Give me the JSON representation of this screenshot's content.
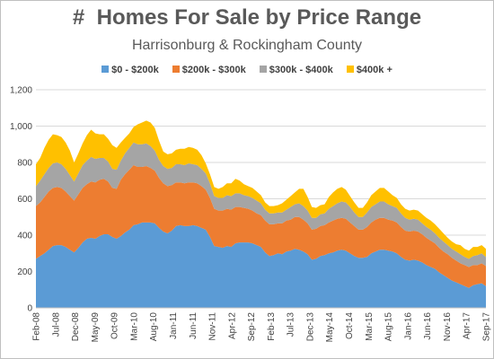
{
  "chart_data": {
    "type": "area",
    "stacked": true,
    "title": "#  Homes For Sale by Price Range",
    "subtitle": "Harrisonburg & Rockingham County",
    "xlabel": "",
    "ylabel": "",
    "ylim": [
      0,
      1200
    ],
    "yticks": [
      "0",
      "200",
      "400",
      "600",
      "800",
      "1,000",
      "1,200"
    ],
    "ytick_values": [
      0,
      200,
      400,
      600,
      800,
      1000,
      1200
    ],
    "xtick_labels": [
      "Feb-08",
      "Jul-08",
      "Dec-08",
      "May-09",
      "Oct-09",
      "Mar-10",
      "Aug-10",
      "Jan-11",
      "Jun-11",
      "Nov-11",
      "Apr-12",
      "Sep-12",
      "Feb-13",
      "Jul-13",
      "Dec-13",
      "May-14",
      "Oct-14",
      "Mar-15",
      "Aug-15",
      "Jan-16",
      "Jun-16",
      "Nov-16",
      "Apr-17",
      "Sep-17"
    ],
    "grid": true,
    "legend": "top",
    "x_start": "Feb-08",
    "x_end": "Sep-17",
    "series": [
      {
        "name": "$0 - $200k",
        "color": "#5b9bd5",
        "values": [
          270,
          285,
          300,
          320,
          340,
          345,
          345,
          335,
          320,
          305,
          330,
          360,
          380,
          385,
          380,
          395,
          405,
          405,
          390,
          380,
          395,
          415,
          430,
          455,
          460,
          470,
          470,
          470,
          465,
          440,
          420,
          410,
          425,
          450,
          455,
          450,
          450,
          455,
          450,
          440,
          430,
          390,
          340,
          335,
          330,
          340,
          335,
          355,
          360,
          360,
          360,
          355,
          345,
          335,
          305,
          285,
          290,
          300,
          295,
          310,
          315,
          325,
          320,
          310,
          295,
          265,
          270,
          285,
          290,
          300,
          305,
          315,
          320,
          315,
          300,
          285,
          275,
          275,
          280,
          300,
          310,
          320,
          320,
          315,
          310,
          300,
          280,
          265,
          260,
          265,
          260,
          250,
          235,
          225,
          215,
          195,
          180,
          165,
          150,
          140,
          130,
          120,
          110,
          125,
          130,
          135,
          120
        ]
      },
      {
        "name": "$200k - $300k",
        "color": "#ed7d31",
        "values": [
          290,
          295,
          310,
          320,
          320,
          320,
          315,
          305,
          295,
          285,
          295,
          300,
          300,
          310,
          310,
          310,
          305,
          290,
          270,
          275,
          310,
          320,
          330,
          330,
          315,
          305,
          310,
          300,
          290,
          275,
          265,
          260,
          250,
          240,
          235,
          235,
          240,
          235,
          235,
          230,
          220,
          215,
          205,
          200,
          205,
          205,
          205,
          200,
          195,
          190,
          185,
          180,
          175,
          175,
          175,
          175,
          170,
          165,
          170,
          170,
          170,
          175,
          180,
          175,
          170,
          165,
          165,
          165,
          165,
          170,
          175,
          175,
          175,
          175,
          170,
          165,
          155,
          155,
          165,
          170,
          175,
          175,
          175,
          170,
          170,
          170,
          165,
          160,
          160,
          160,
          160,
          155,
          150,
          145,
          140,
          135,
          130,
          130,
          125,
          120,
          115,
          115,
          115,
          110,
          105,
          110,
          110
        ]
      },
      {
        "name": "$300k - $400k",
        "color": "#a5a5a5",
        "values": [
          110,
          120,
          125,
          130,
          135,
          135,
          130,
          125,
          115,
          105,
          115,
          125,
          130,
          135,
          130,
          120,
          115,
          110,
          105,
          105,
          105,
          115,
          120,
          125,
          125,
          125,
          125,
          120,
          110,
          100,
          95,
          95,
          95,
          100,
          100,
          100,
          105,
          100,
          100,
          95,
          90,
          80,
          70,
          70,
          70,
          75,
          75,
          75,
          75,
          70,
          70,
          70,
          70,
          65,
          60,
          60,
          60,
          60,
          60,
          60,
          70,
          70,
          75,
          75,
          70,
          65,
          60,
          65,
          65,
          75,
          80,
          85,
          90,
          90,
          85,
          75,
          70,
          70,
          80,
          85,
          85,
          90,
          90,
          85,
          80,
          80,
          75,
          70,
          65,
          65,
          65,
          60,
          60,
          60,
          55,
          55,
          55,
          50,
          50,
          50,
          50,
          45,
          45,
          50,
          55,
          55,
          50
        ]
      },
      {
        "name": "$400k +",
        "color": "#ffc000",
        "values": [
          120,
          125,
          145,
          155,
          160,
          150,
          150,
          145,
          135,
          105,
          110,
          120,
          140,
          150,
          140,
          130,
          130,
          125,
          130,
          120,
          100,
          85,
          80,
          85,
          110,
          120,
          125,
          130,
          125,
          105,
          80,
          80,
          80,
          80,
          85,
          90,
          90,
          90,
          85,
          75,
          55,
          50,
          50,
          50,
          60,
          65,
          70,
          80,
          70,
          60,
          55,
          55,
          50,
          45,
          40,
          40,
          40,
          40,
          50,
          55,
          60,
          65,
          80,
          95,
          75,
          60,
          55,
          50,
          50,
          65,
          75,
          80,
          80,
          70,
          60,
          55,
          50,
          50,
          55,
          65,
          70,
          75,
          75,
          70,
          60,
          55,
          50,
          50,
          50,
          50,
          50,
          50,
          50,
          50,
          50,
          50,
          45,
          40,
          40,
          40,
          50,
          45,
          45,
          50,
          45,
          45,
          45
        ]
      }
    ]
  },
  "legend_items": [
    {
      "label": "$0 - $200k",
      "color": "#5b9bd5"
    },
    {
      "label": "$200k - $300k",
      "color": "#ed7d31"
    },
    {
      "label": "$300k - $400k",
      "color": "#a5a5a5"
    },
    {
      "label": "$400k +",
      "color": "#ffc000"
    }
  ]
}
